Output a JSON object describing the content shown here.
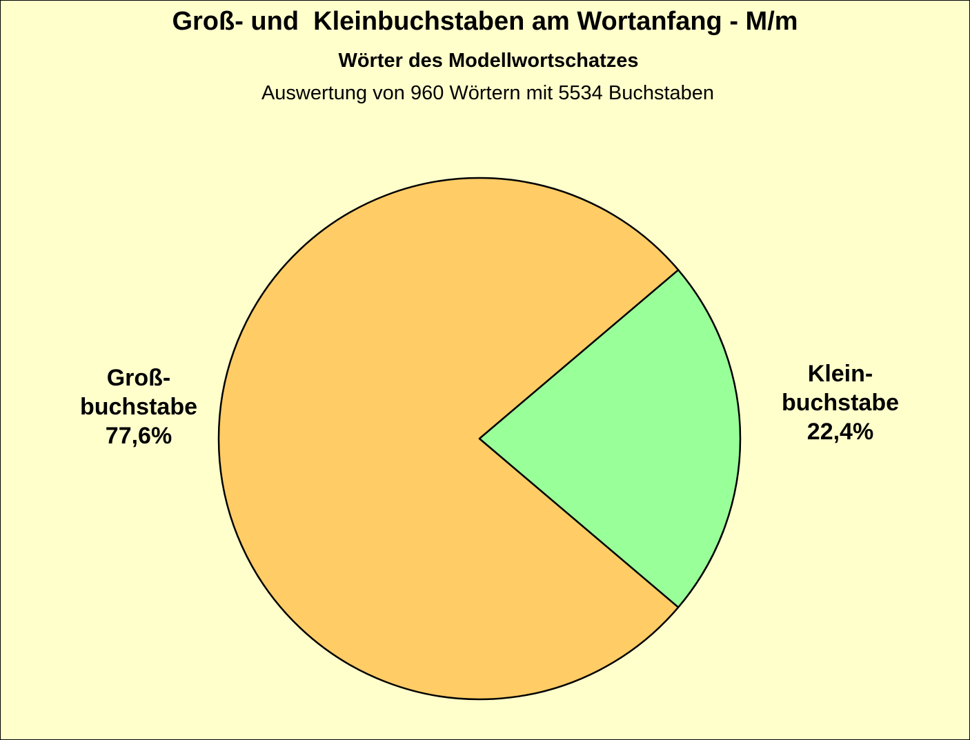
{
  "chart_data": {
    "type": "pie",
    "title": "Groß- und  Kleinbuchstaben am Wortanfang - M/m",
    "subtitle": "Wörter des Modellwortschatzes",
    "note": "Auswertung von 960 Wörtern mit 5534 Buchstaben",
    "slices": [
      {
        "label_lines": [
          "Groß-",
          "buchstabe"
        ],
        "value": 77.6,
        "value_label": "77,6%",
        "color": "#ffcc66"
      },
      {
        "label_lines": [
          "Klein-",
          "buchstabe"
        ],
        "value": 22.4,
        "value_label": "22,4%",
        "color": "#99ff99"
      }
    ],
    "background_color": "#ffffcc",
    "legend": "none"
  }
}
